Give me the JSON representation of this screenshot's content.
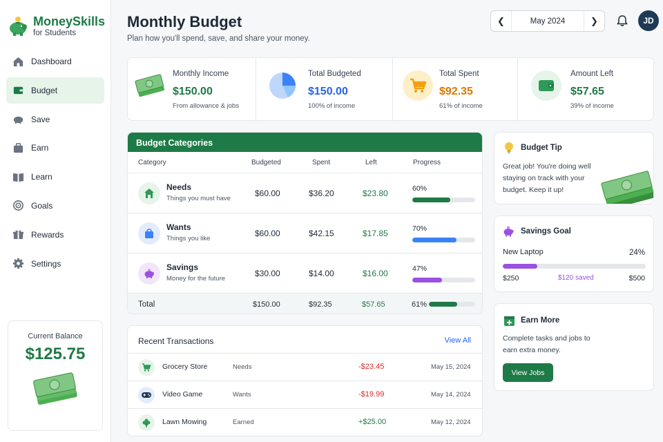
{
  "brand": {
    "name": "MoneySkills",
    "sub": "for Students"
  },
  "nav": [
    {
      "label": "Dashboard",
      "icon": "home-icon"
    },
    {
      "label": "Budget",
      "icon": "wallet-icon",
      "active": true
    },
    {
      "label": "Save",
      "icon": "piggy-bank-icon"
    },
    {
      "label": "Earn",
      "icon": "briefcase-icon"
    },
    {
      "label": "Learn",
      "icon": "book-icon"
    },
    {
      "label": "Goals",
      "icon": "target-icon"
    },
    {
      "label": "Rewards",
      "icon": "gift-icon"
    },
    {
      "label": "Settings",
      "icon": "gear-icon"
    }
  ],
  "balance": {
    "label": "Current Balance",
    "amount": "$125.75"
  },
  "header": {
    "title": "Monthly Budget",
    "subtitle": "Plan how you'll spend, save, and share your money.",
    "month": "May 2024",
    "avatar": "JD"
  },
  "stats": [
    {
      "title": "Monthly Income",
      "value": "$150.00",
      "note": "From allowance & jobs",
      "color": "#1e7a46",
      "icon": "cash-icon"
    },
    {
      "title": "Total Budgeted",
      "value": "$150.00",
      "note": "100% of income",
      "color": "#2563eb",
      "icon": "pie-chart-icon"
    },
    {
      "title": "Total Spent",
      "value": "$92.35",
      "note": "61% of income",
      "color": "#d97706",
      "icon": "cart-icon"
    },
    {
      "title": "Amount Left",
      "value": "$57.65",
      "note": "39% of income",
      "color": "#1e7a46",
      "icon": "wallet-icon"
    }
  ],
  "categories": {
    "title": "Budget Categories",
    "columns": {
      "category": "Category",
      "budgeted": "Budgeted",
      "spent": "Spent",
      "left": "Left",
      "progress": "Progress"
    },
    "rows": [
      {
        "name": "Needs",
        "desc": "Things you must have",
        "budgeted": "$60.00",
        "spent": "$36.20",
        "left": "$23.80",
        "pct": "60%",
        "progress": 0.6,
        "color": "#1e7a46",
        "icon": "home-icon"
      },
      {
        "name": "Wants",
        "desc": "Things you like",
        "budgeted": "$60.00",
        "spent": "$42.15",
        "left": "$17.85",
        "pct": "70%",
        "progress": 0.7,
        "color": "#3b82f6",
        "icon": "shopping-bag-icon"
      },
      {
        "name": "Savings",
        "desc": "Money for the future",
        "budgeted": "$30.00",
        "spent": "$14.00",
        "left": "$16.00",
        "pct": "47%",
        "progress": 0.47,
        "color": "#9b51e0",
        "icon": "piggy-bank-icon"
      }
    ],
    "total": {
      "label": "Total",
      "budgeted": "$150.00",
      "spent": "$92.35",
      "left": "$57.65",
      "pct": "61%",
      "progress": 0.61
    }
  },
  "transactions": {
    "title": "Recent Transactions",
    "view_all": "View All",
    "rows": [
      {
        "name": "Grocery Store",
        "category": "Needs",
        "amount": "-$23.45",
        "date": "May 15, 2024",
        "color": "#dc2626",
        "icon": "cart-icon"
      },
      {
        "name": "Video Game",
        "category": "Wants",
        "amount": "-$19.99",
        "date": "May 14, 2024",
        "color": "#dc2626",
        "icon": "gamepad-icon"
      },
      {
        "name": "Lawn Mowing",
        "category": "Earned",
        "amount": "+$25.00",
        "date": "May 12, 2024",
        "color": "#1e7a46",
        "icon": "leaf-icon"
      }
    ]
  },
  "tip": {
    "title": "Budget Tip",
    "text": "Great job! You're doing well staying on track with your budget. Keep it up!"
  },
  "goal": {
    "title": "Savings Goal",
    "item": "New Laptop",
    "pct": "24%",
    "progress": 0.24,
    "start": "$250",
    "saved": "$120 saved",
    "target": "$500"
  },
  "earn": {
    "title": "Earn More",
    "text": "Complete tasks and jobs to earn extra money.",
    "button": "View Jobs"
  }
}
